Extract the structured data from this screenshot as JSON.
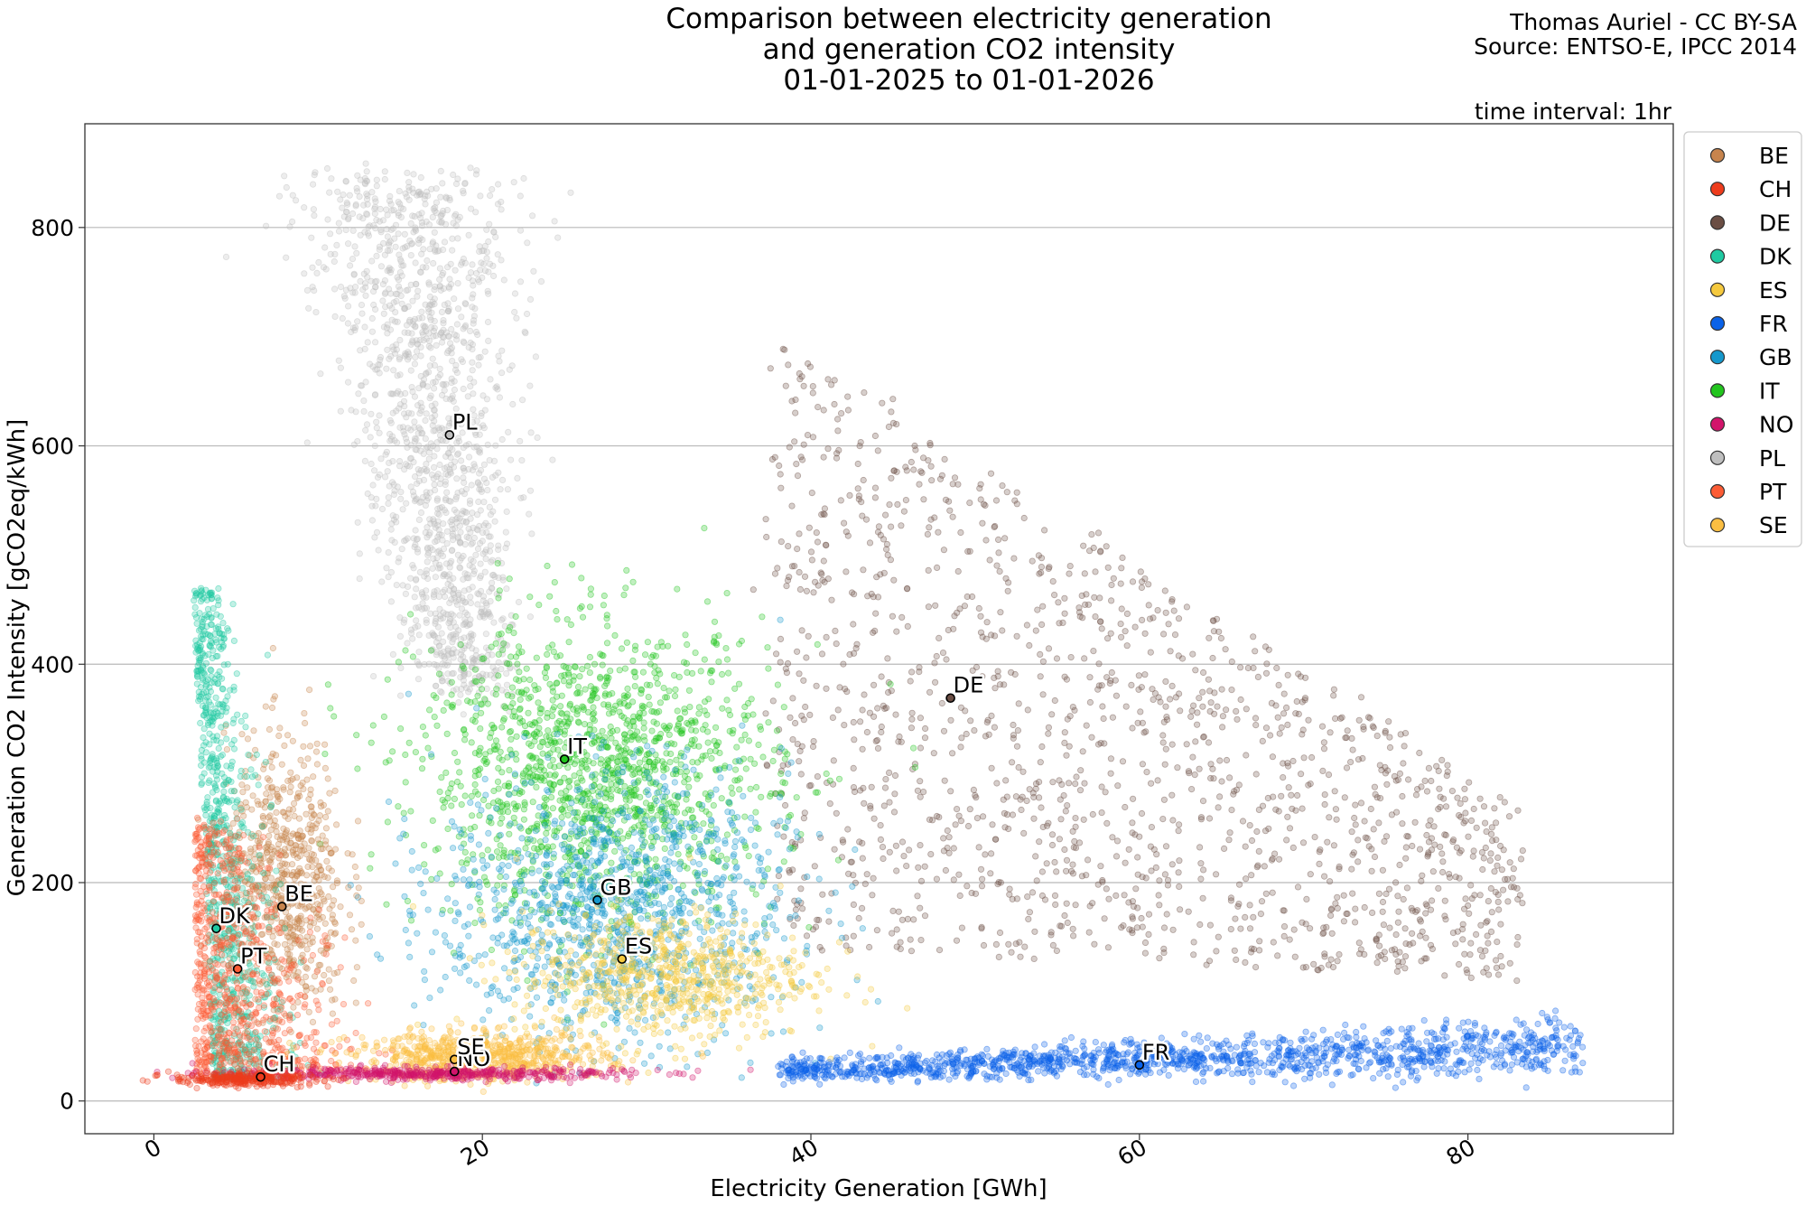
{
  "chart_data": {
    "type": "scatter",
    "title_lines": [
      "Comparison between electricity generation",
      "and generation CO2 intensity",
      "01-01-2025 to 01-01-2026"
    ],
    "credit_lines": [
      "Thomas Auriel - CC BY-SA",
      "Source: ENTSO-E, IPCC 2014"
    ],
    "interval_text": "time interval: 1hr",
    "xlabel": "Electricity Generation [GWh]",
    "ylabel": "Generation CO2 Intensity [gCO2eq/kWh]",
    "xlim": [
      -4.2,
      92.5
    ],
    "ylim": [
      -30,
      895
    ],
    "x_ticks": [
      0,
      20,
      40,
      60,
      80
    ],
    "y_ticks": [
      0,
      200,
      400,
      600,
      800
    ],
    "grid": "horizontal",
    "legend_position": "outside-right",
    "series": [
      {
        "name": "BE",
        "color": "#c7844d",
        "mean": [
          7.8,
          178
        ]
      },
      {
        "name": "CH",
        "color": "#ee3c1c",
        "mean": [
          6.5,
          22
        ]
      },
      {
        "name": "DE",
        "color": "#6b4e44",
        "mean": [
          48.5,
          369
        ]
      },
      {
        "name": "DK",
        "color": "#1fcaa2",
        "mean": [
          3.8,
          158
        ]
      },
      {
        "name": "ES",
        "color": "#f5c93e",
        "mean": [
          28.5,
          130
        ]
      },
      {
        "name": "FR",
        "color": "#0a62e8",
        "mean": [
          60.0,
          33
        ]
      },
      {
        "name": "GB",
        "color": "#1598cc",
        "mean": [
          27.0,
          184
        ]
      },
      {
        "name": "IT",
        "color": "#22c51e",
        "mean": [
          25.0,
          313
        ]
      },
      {
        "name": "NO",
        "color": "#d2146b",
        "mean": [
          18.3,
          27
        ]
      },
      {
        "name": "PL",
        "color": "#bfbfbf",
        "mean": [
          18.0,
          610
        ]
      },
      {
        "name": "PT",
        "color": "#fc5c35",
        "mean": [
          5.1,
          121
        ]
      },
      {
        "name": "SE",
        "color": "#fbbe42",
        "mean": [
          18.3,
          38
        ]
      }
    ]
  }
}
